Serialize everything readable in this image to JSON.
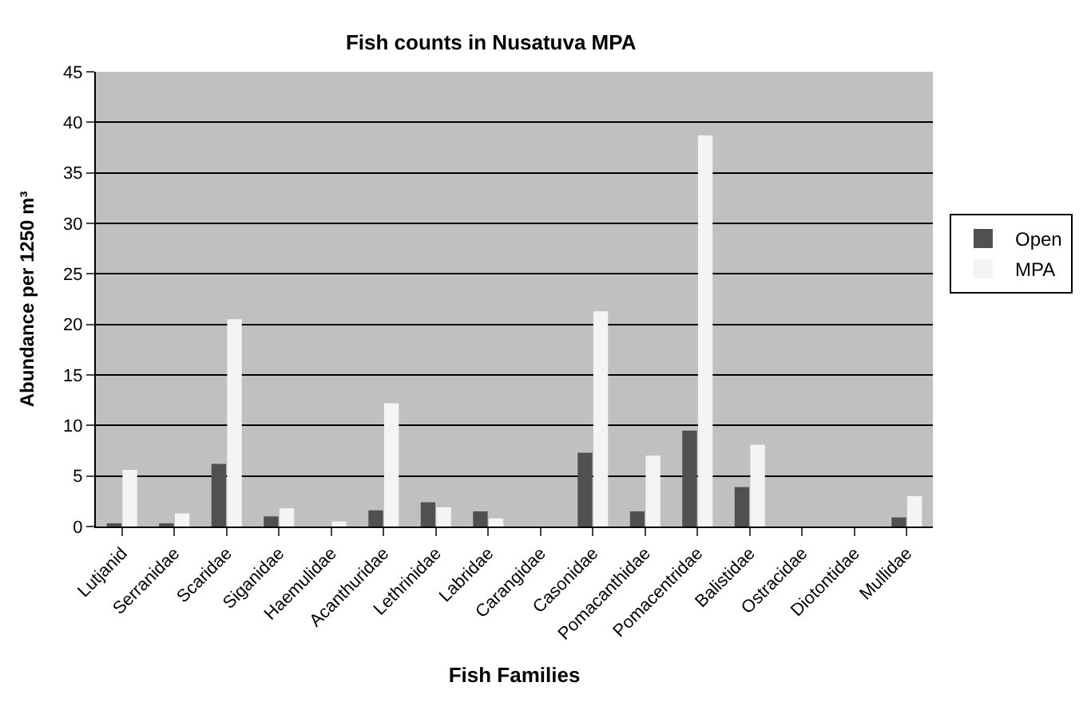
{
  "chart_data": {
    "type": "bar",
    "title": "Fish counts in Nusatuva MPA",
    "xlabel": "Fish Families",
    "ylabel": "Abundance per 1250 m³",
    "categories": [
      "Lutjanid",
      "Serranidae",
      "Scaridae",
      "Siganidae",
      "Haemulidae",
      "Acanthuridae",
      "Lethrinidae",
      "Labridae",
      "Carangidae",
      "Casonidae",
      "Pomacanthidae",
      "Pomacentridae",
      "Balistidae",
      "Ostracidae",
      "Diotontidae",
      "Mullidae"
    ],
    "series": [
      {
        "name": "Open",
        "color": "#505050",
        "values": [
          0.2,
          0.2,
          6.2,
          1.0,
          0,
          1.6,
          2.4,
          1.5,
          0,
          7.3,
          1.5,
          9.5,
          3.9,
          0,
          0,
          0.9
        ]
      },
      {
        "name": "MPA",
        "color": "#f4f4f4",
        "values": [
          5.6,
          1.3,
          20.5,
          1.8,
          0.5,
          12.2,
          1.9,
          0.8,
          0,
          21.3,
          7.0,
          38.7,
          8.1,
          0,
          0,
          3.0
        ]
      }
    ],
    "ylim": [
      0,
      45
    ],
    "yticks": [
      0,
      5,
      10,
      15,
      20,
      25,
      30,
      35,
      40,
      45
    ],
    "grid": "y",
    "legend": "right"
  }
}
